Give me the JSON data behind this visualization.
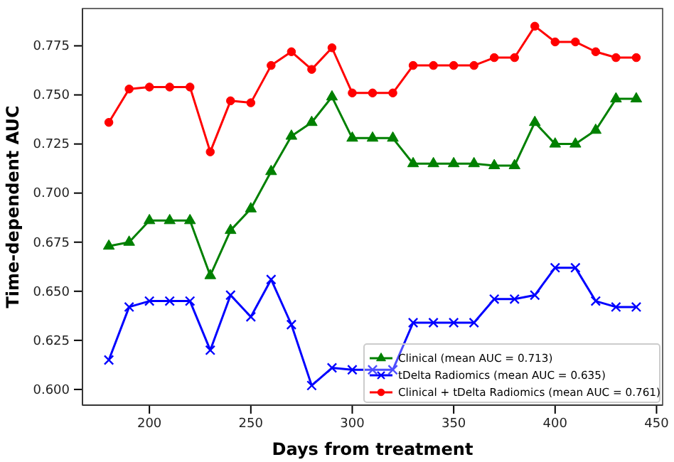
{
  "chart_data": {
    "type": "line",
    "xlabel": "Days from treatment",
    "ylabel": "Time-dependent AUC",
    "x": [
      180,
      190,
      200,
      210,
      220,
      230,
      240,
      250,
      260,
      270,
      280,
      290,
      300,
      310,
      320,
      330,
      340,
      350,
      360,
      370,
      380,
      390,
      400,
      410,
      420,
      430,
      440
    ],
    "series": [
      {
        "name": "Clinical (mean AUC = 0.713)",
        "color": "#008000",
        "marker": "triangle",
        "values": [
          0.673,
          0.675,
          0.686,
          0.686,
          0.686,
          0.658,
          0.681,
          0.692,
          0.711,
          0.729,
          0.736,
          0.749,
          0.728,
          0.728,
          0.728,
          0.715,
          0.715,
          0.715,
          0.715,
          0.714,
          0.714,
          0.736,
          0.725,
          0.725,
          0.732,
          0.748,
          0.748
        ]
      },
      {
        "name": "tDelta Radiomics (mean AUC = 0.635)",
        "color": "#0000ff",
        "marker": "cross",
        "values": [
          0.615,
          0.642,
          0.645,
          0.645,
          0.645,
          0.62,
          0.648,
          0.637,
          0.656,
          0.633,
          0.602,
          0.611,
          0.61,
          0.61,
          0.61,
          0.634,
          0.634,
          0.634,
          0.634,
          0.646,
          0.646,
          0.648,
          0.662,
          0.662,
          0.645,
          0.642,
          0.642
        ]
      },
      {
        "name": "Clinical + tDelta Radiomics (mean AUC = 0.761)",
        "color": "#ff0000",
        "marker": "circle",
        "values": [
          0.736,
          0.753,
          0.754,
          0.754,
          0.754,
          0.721,
          0.747,
          0.746,
          0.765,
          0.772,
          0.763,
          0.774,
          0.751,
          0.751,
          0.751,
          0.765,
          0.765,
          0.765,
          0.765,
          0.769,
          0.769,
          0.785,
          0.777,
          0.777,
          0.772,
          0.769,
          0.769
        ]
      }
    ],
    "xlim": [
      167,
      453
    ],
    "xticks": [
      200,
      250,
      300,
      350,
      400,
      450
    ],
    "ylim": [
      0.592,
      0.794
    ],
    "yticks": [
      {
        "value": 0.6,
        "label": "0.600"
      },
      {
        "value": 0.625,
        "label": "0.625"
      },
      {
        "value": 0.65,
        "label": "0.650"
      },
      {
        "value": 0.675,
        "label": "0.675"
      },
      {
        "value": 0.7,
        "label": "0.700"
      },
      {
        "value": 0.725,
        "label": "0.725"
      },
      {
        "value": 0.75,
        "label": "0.750"
      },
      {
        "value": 0.775,
        "label": "0.775"
      }
    ],
    "legend": "bottom right",
    "grid": false
  }
}
